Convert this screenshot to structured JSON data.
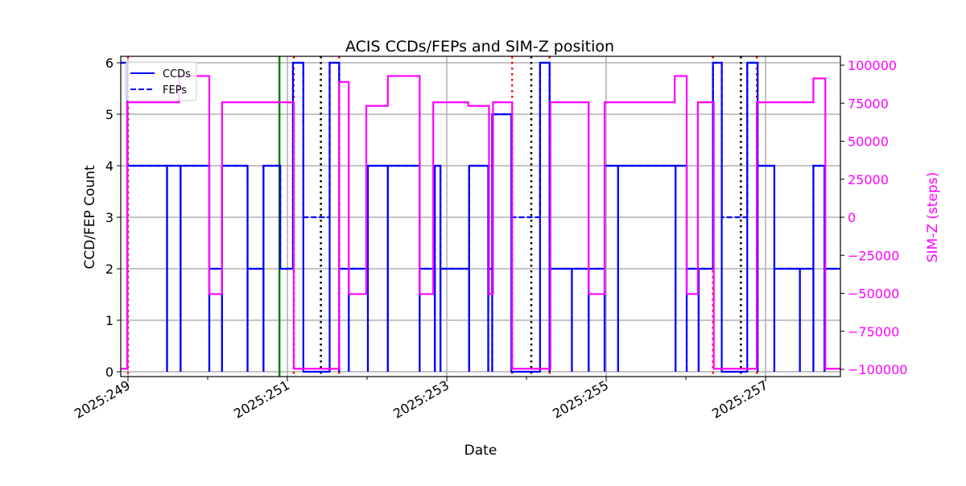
{
  "chart_data": {
    "type": "line",
    "title": "ACIS CCDs/FEPs and SIM-Z position",
    "xlabel": "Date",
    "ylabel": "CCD/FEP Count",
    "ylabel_right": "SIM-Z (steps)",
    "xlim": [
      248.909,
      257.939
    ],
    "ylim": [
      -0.094,
      6.125
    ],
    "ylim_right": [
      -104760,
      105820
    ],
    "x_ticks": [
      249,
      250,
      251,
      252,
      253,
      254,
      255,
      256,
      257
    ],
    "x_tick_labels": [
      {
        "v": 249,
        "label": "2025:249"
      },
      {
        "v": 251,
        "label": "2025:251"
      },
      {
        "v": 253,
        "label": "2025:253"
      },
      {
        "v": 255,
        "label": "2025:255"
      },
      {
        "v": 257,
        "label": "2025:257"
      }
    ],
    "y_ticks": [
      {
        "v": 0,
        "label": "0"
      },
      {
        "v": 1,
        "label": "1"
      },
      {
        "v": 2,
        "label": "2"
      },
      {
        "v": 3,
        "label": "3"
      },
      {
        "v": 4,
        "label": "4"
      },
      {
        "v": 5,
        "label": "5"
      },
      {
        "v": 6,
        "label": "6"
      }
    ],
    "y_ticks_right": [
      {
        "v": 100000,
        "label": "100000"
      },
      {
        "v": 75000,
        "label": "75000"
      },
      {
        "v": 50000,
        "label": "50000"
      },
      {
        "v": 25000,
        "label": "25000"
      },
      {
        "v": 0,
        "label": "0"
      },
      {
        "v": -25000,
        "label": "−25000"
      },
      {
        "v": -50000,
        "label": "−50000"
      },
      {
        "v": -75000,
        "label": "−75000"
      },
      {
        "v": -100000,
        "label": "−100000"
      }
    ],
    "grid": true,
    "legend": {
      "placement": "top-left",
      "entries": [
        {
          "label": "CCDs",
          "style": "solid"
        },
        {
          "label": "FEPs",
          "style": "dashed"
        }
      ]
    },
    "colors": {
      "ccd": "#0000ff",
      "fep": "#0000ff",
      "simz": "#ff00ff",
      "green": "#008000",
      "black": "#000000",
      "red": "#ff0000"
    },
    "series": [
      {
        "name": "CCDs",
        "axis": "left",
        "points": [
          [
            248.91,
            6
          ],
          [
            248.99,
            4
          ],
          [
            249.49,
            0
          ],
          [
            249.49,
            4
          ],
          [
            249.66,
            0
          ],
          [
            249.66,
            4
          ],
          [
            250.02,
            0
          ],
          [
            250.02,
            2
          ],
          [
            250.18,
            0
          ],
          [
            250.18,
            4
          ],
          [
            250.5,
            0
          ],
          [
            250.5,
            2
          ],
          [
            250.7,
            0
          ],
          [
            250.7,
            4
          ],
          [
            250.91,
            2
          ],
          [
            251.07,
            6
          ],
          [
            251.2,
            0
          ],
          [
            251.53,
            6
          ],
          [
            251.65,
            0
          ],
          [
            251.65,
            2
          ],
          [
            251.77,
            0
          ],
          [
            251.77,
            2
          ],
          [
            252.01,
            0
          ],
          [
            252.01,
            4
          ],
          [
            252.26,
            0
          ],
          [
            252.26,
            4
          ],
          [
            252.66,
            0
          ],
          [
            252.66,
            2
          ],
          [
            252.85,
            0
          ],
          [
            252.85,
            4
          ],
          [
            252.92,
            0
          ],
          [
            252.92,
            2
          ],
          [
            253.28,
            0
          ],
          [
            253.28,
            4
          ],
          [
            253.52,
            0
          ],
          [
            253.52,
            2
          ],
          [
            253.57,
            0
          ],
          [
            253.57,
            5
          ],
          [
            253.81,
            0
          ],
          [
            254.17,
            6
          ],
          [
            254.29,
            0
          ],
          [
            254.29,
            2
          ],
          [
            254.57,
            0
          ],
          [
            254.57,
            2
          ],
          [
            254.78,
            0
          ],
          [
            254.78,
            2
          ],
          [
            254.98,
            0
          ],
          [
            254.98,
            4
          ],
          [
            255.15,
            0
          ],
          [
            255.15,
            4
          ],
          [
            255.87,
            0
          ],
          [
            255.87,
            4
          ],
          [
            256.01,
            0
          ],
          [
            256.01,
            2
          ],
          [
            256.16,
            0
          ],
          [
            256.16,
            2
          ],
          [
            256.34,
            6
          ],
          [
            256.45,
            0
          ],
          [
            256.77,
            6
          ],
          [
            256.9,
            0
          ],
          [
            256.9,
            4
          ],
          [
            257.11,
            0
          ],
          [
            257.11,
            2
          ],
          [
            257.43,
            0
          ],
          [
            257.43,
            2
          ],
          [
            257.6,
            0
          ],
          [
            257.6,
            4
          ],
          [
            257.74,
            0
          ],
          [
            257.74,
            2
          ],
          [
            257.94,
            2
          ]
        ]
      },
      {
        "name": "FEPs",
        "axis": "left",
        "points": [
          [
            248.91,
            6
          ],
          [
            248.99,
            4
          ],
          [
            249.49,
            0
          ],
          [
            249.49,
            4
          ],
          [
            249.66,
            0
          ],
          [
            249.66,
            4
          ],
          [
            250.02,
            0
          ],
          [
            250.02,
            2
          ],
          [
            250.18,
            0
          ],
          [
            250.18,
            4
          ],
          [
            250.5,
            0
          ],
          [
            250.5,
            2
          ],
          [
            250.7,
            0
          ],
          [
            250.7,
            4
          ],
          [
            250.91,
            2
          ],
          [
            251.07,
            6
          ],
          [
            251.2,
            3
          ],
          [
            251.53,
            6
          ],
          [
            251.65,
            0
          ],
          [
            251.65,
            2
          ],
          [
            251.77,
            0
          ],
          [
            251.77,
            2
          ],
          [
            252.01,
            0
          ],
          [
            252.01,
            4
          ],
          [
            252.26,
            0
          ],
          [
            252.26,
            4
          ],
          [
            252.66,
            0
          ],
          [
            252.66,
            2
          ],
          [
            252.85,
            0
          ],
          [
            252.85,
            4
          ],
          [
            252.92,
            0
          ],
          [
            252.92,
            2
          ],
          [
            253.28,
            0
          ],
          [
            253.28,
            4
          ],
          [
            253.52,
            0
          ],
          [
            253.52,
            2
          ],
          [
            253.57,
            0
          ],
          [
            253.57,
            5
          ],
          [
            253.81,
            3
          ],
          [
            254.17,
            6
          ],
          [
            254.29,
            0
          ],
          [
            254.29,
            2
          ],
          [
            254.57,
            0
          ],
          [
            254.57,
            2
          ],
          [
            254.78,
            0
          ],
          [
            254.78,
            2
          ],
          [
            254.98,
            0
          ],
          [
            254.98,
            4
          ],
          [
            255.15,
            0
          ],
          [
            255.15,
            4
          ],
          [
            255.87,
            0
          ],
          [
            255.87,
            4
          ],
          [
            256.01,
            0
          ],
          [
            256.01,
            2
          ],
          [
            256.16,
            0
          ],
          [
            256.16,
            2
          ],
          [
            256.34,
            6
          ],
          [
            256.45,
            3
          ],
          [
            256.77,
            6
          ],
          [
            256.9,
            0
          ],
          [
            256.9,
            4
          ],
          [
            257.11,
            0
          ],
          [
            257.11,
            2
          ],
          [
            257.43,
            0
          ],
          [
            257.43,
            2
          ],
          [
            257.6,
            0
          ],
          [
            257.6,
            4
          ],
          [
            257.74,
            0
          ],
          [
            257.74,
            2
          ],
          [
            257.94,
            2
          ]
        ]
      },
      {
        "name": "SIM-Z",
        "axis": "right",
        "points": [
          [
            248.91,
            -99600
          ],
          [
            248.99,
            75600
          ],
          [
            249.64,
            92900
          ],
          [
            250.02,
            -50500
          ],
          [
            250.18,
            75600
          ],
          [
            251.08,
            -99600
          ],
          [
            251.65,
            89000
          ],
          [
            251.77,
            -50500
          ],
          [
            251.99,
            73200
          ],
          [
            252.26,
            92900
          ],
          [
            252.66,
            -50500
          ],
          [
            252.83,
            75600
          ],
          [
            253.27,
            73200
          ],
          [
            253.53,
            -50500
          ],
          [
            253.58,
            75600
          ],
          [
            253.82,
            -99600
          ],
          [
            254.3,
            75600
          ],
          [
            254.78,
            -50500
          ],
          [
            254.98,
            75600
          ],
          [
            255.86,
            92900
          ],
          [
            256.01,
            -50500
          ],
          [
            256.15,
            75600
          ],
          [
            256.35,
            -99600
          ],
          [
            256.89,
            75600
          ],
          [
            257.6,
            91300
          ],
          [
            257.75,
            -99600
          ],
          [
            257.94,
            -99600
          ]
        ]
      }
    ],
    "vlines": [
      {
        "x": 250.9,
        "color": "green",
        "style": "solid"
      },
      {
        "x": 251.42,
        "color": "black",
        "style": "dotted"
      },
      {
        "x": 254.06,
        "color": "black",
        "style": "dotted"
      },
      {
        "x": 256.69,
        "color": "black",
        "style": "dotted"
      },
      {
        "x": 249.0,
        "color": "red",
        "style": "dotted"
      },
      {
        "x": 251.08,
        "color": "red",
        "style": "dotted"
      },
      {
        "x": 251.65,
        "color": "red",
        "style": "dotted"
      },
      {
        "x": 253.82,
        "color": "red",
        "style": "dotted"
      },
      {
        "x": 254.29,
        "color": "red",
        "style": "dotted"
      },
      {
        "x": 256.34,
        "color": "red",
        "style": "dotted"
      },
      {
        "x": 256.89,
        "color": "red",
        "style": "dotted"
      }
    ]
  }
}
